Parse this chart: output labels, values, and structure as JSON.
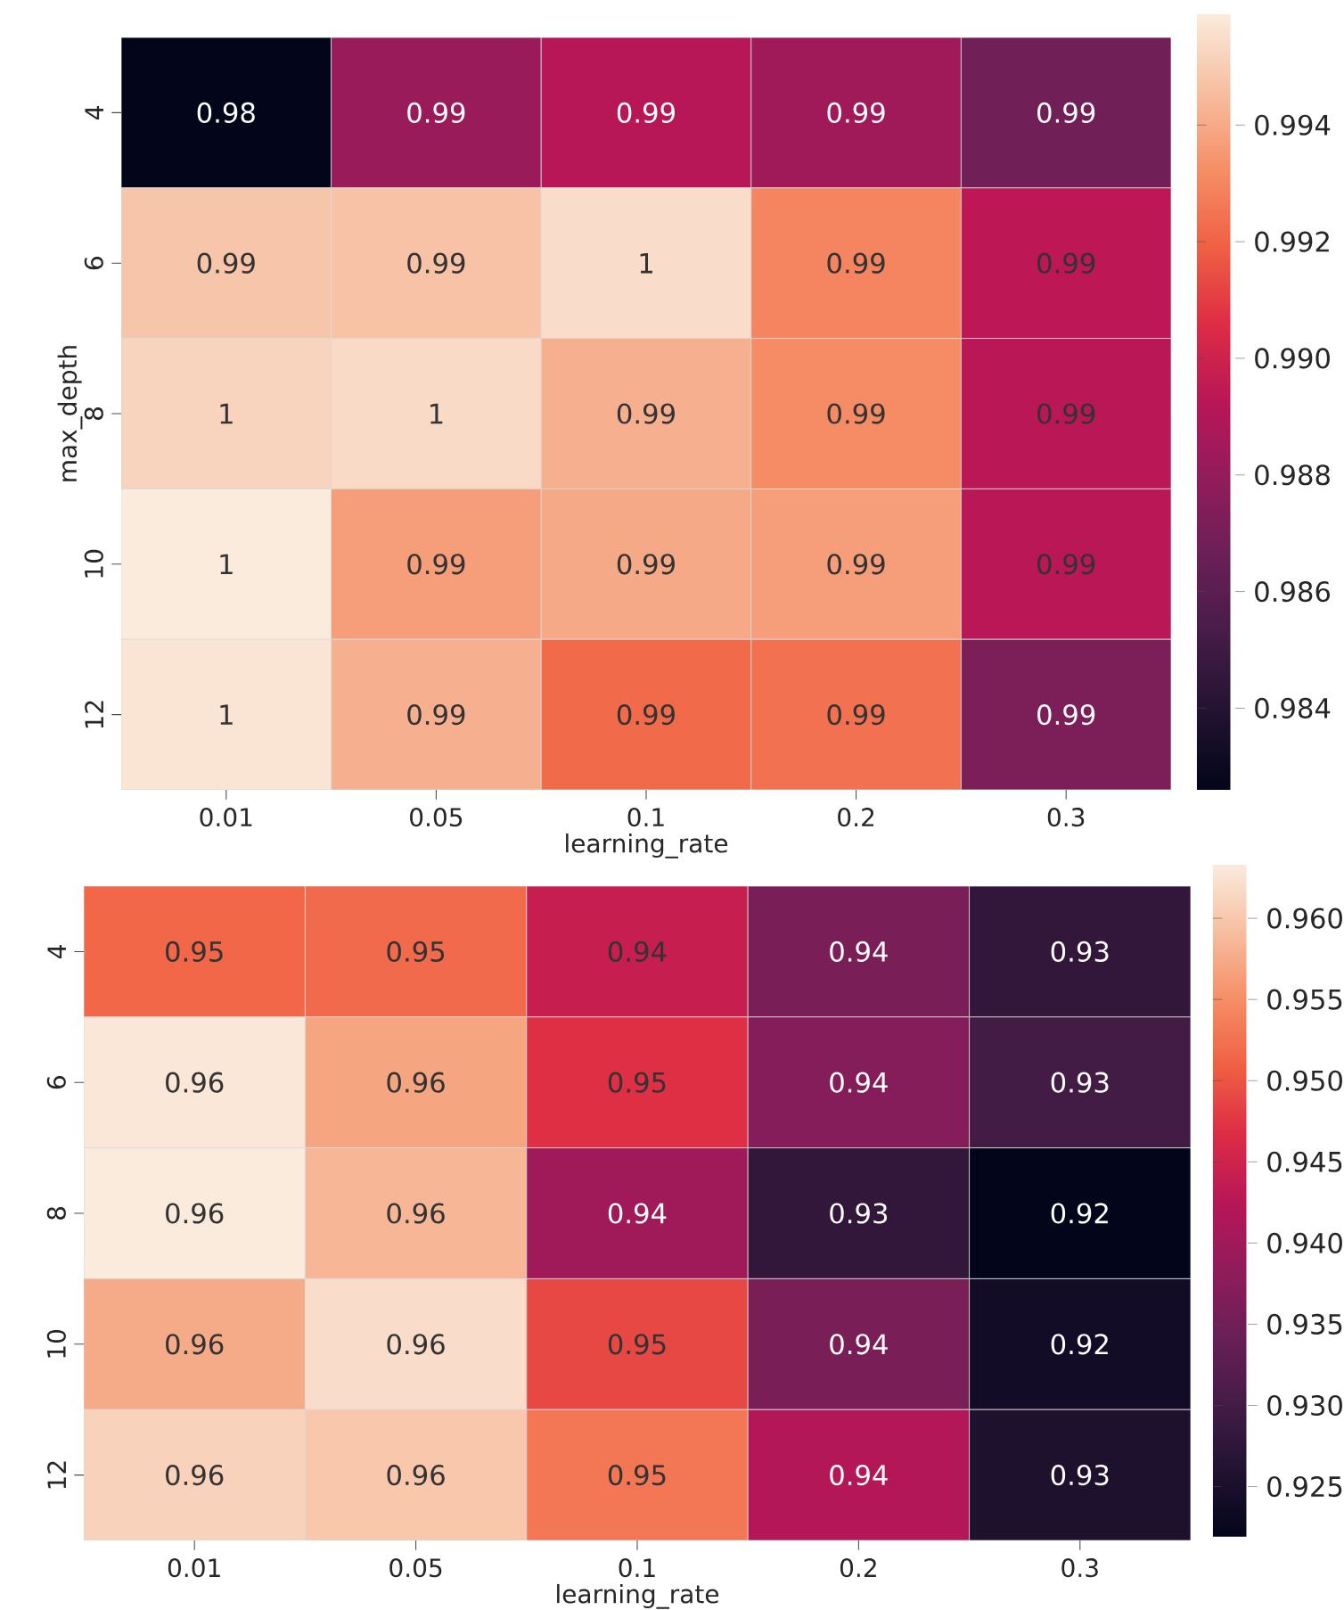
{
  "chart_data": [
    {
      "type": "heatmap",
      "xlabel": "learning_rate",
      "ylabel": "max_depth",
      "categories": [
        "0.01",
        "0.05",
        "0.1",
        "0.2",
        "0.3"
      ],
      "y_categories": [
        "4",
        "6",
        "8",
        "10",
        "12"
      ],
      "cells": [
        [
          0.9826,
          0.9882,
          0.9892,
          0.9884,
          0.9868
        ],
        [
          0.9948,
          0.9947,
          0.9955,
          0.993,
          0.9894
        ],
        [
          0.9952,
          0.9954,
          0.9942,
          0.9932,
          0.9893
        ],
        [
          0.9959,
          0.9937,
          0.994,
          0.9937,
          0.9893
        ],
        [
          0.9957,
          0.9942,
          0.9922,
          0.9924,
          0.9872
        ]
      ],
      "cell_labels": [
        [
          "0.98",
          "0.99",
          "0.99",
          "0.99",
          "0.99"
        ],
        [
          "0.99",
          "0.99",
          "1",
          "0.99",
          "0.99"
        ],
        [
          "1",
          "1",
          "0.99",
          "0.99",
          "0.99"
        ],
        [
          "1",
          "0.99",
          "0.99",
          "0.99",
          "0.99"
        ],
        [
          "1",
          "0.99",
          "0.99",
          "0.99",
          "0.99"
        ]
      ],
      "clim": [
        0.9826,
        0.9959
      ],
      "cticks": [
        0.984,
        0.986,
        0.988,
        {
          "value": 0.99,
          "label": "0.990"
        },
        0.992,
        0.994
      ]
    },
    {
      "type": "heatmap",
      "xlabel": "learning_rate",
      "categories": [
        "0.01",
        "0.05",
        "0.1",
        "0.2",
        "0.3"
      ],
      "y_categories": [
        "4",
        "6",
        "8",
        "10",
        "12"
      ],
      "cells": [
        [
          0.9515,
          0.9518,
          0.9442,
          0.936,
          0.928
        ],
        [
          0.963,
          0.957,
          0.947,
          0.937,
          0.93
        ],
        [
          0.9633,
          0.9585,
          0.94,
          0.928,
          0.9219
        ],
        [
          0.9575,
          0.962,
          0.949,
          0.936,
          0.924
        ],
        [
          0.961,
          0.96,
          0.953,
          0.942,
          0.9255
        ]
      ],
      "cell_labels": [
        [
          "0.95",
          "0.95",
          "0.94",
          "0.94",
          "0.93"
        ],
        [
          "0.96",
          "0.96",
          "0.95",
          "0.94",
          "0.93"
        ],
        [
          "0.96",
          "0.96",
          "0.94",
          "0.93",
          "0.92"
        ],
        [
          "0.96",
          "0.96",
          "0.95",
          "0.94",
          "0.92"
        ],
        [
          "0.96",
          "0.96",
          "0.95",
          "0.94",
          "0.93"
        ]
      ],
      "clim": [
        0.9219,
        0.9633
      ],
      "cticks": [
        0.925,
        {
          "value": 0.93,
          "label": "0.930"
        },
        0.935,
        {
          "value": 0.94,
          "label": "0.940"
        },
        0.945,
        {
          "value": 0.95,
          "label": "0.950"
        },
        0.955,
        {
          "value": 0.96,
          "label": "0.960"
        }
      ]
    }
  ]
}
